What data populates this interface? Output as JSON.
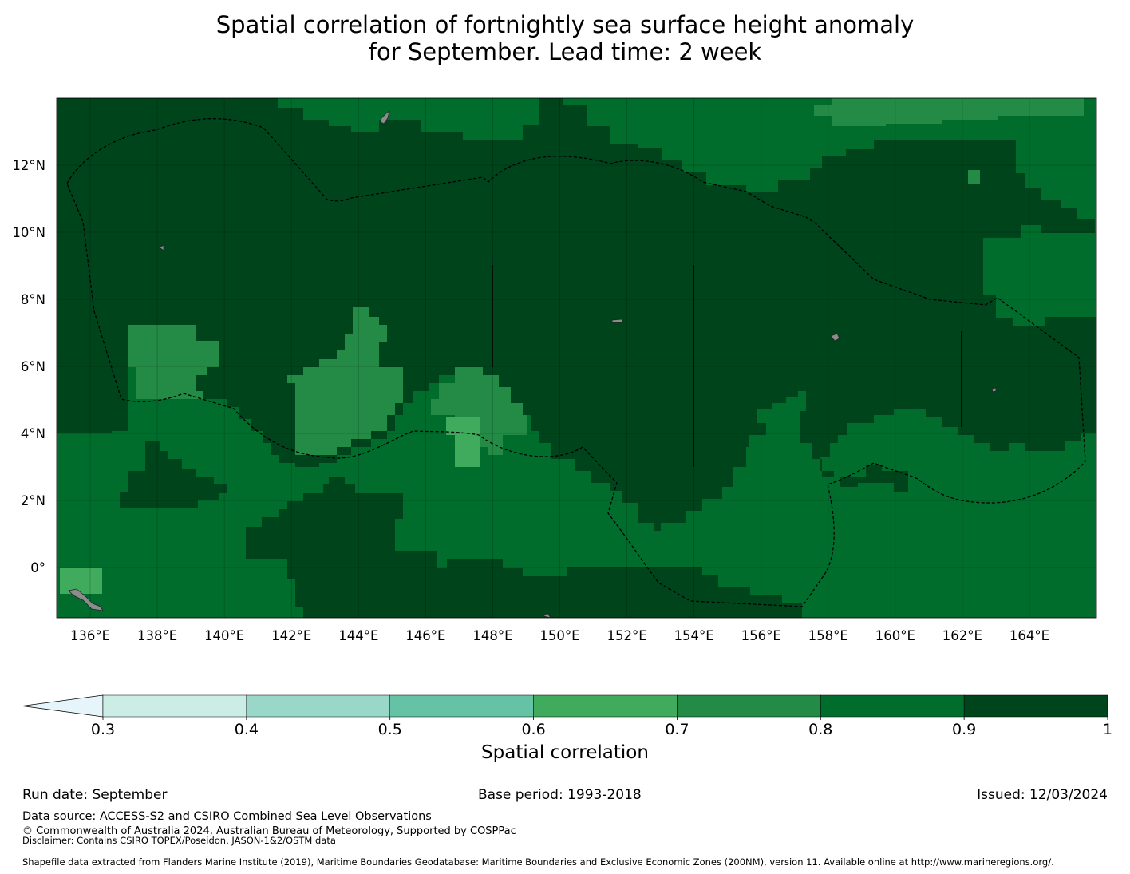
{
  "title": {
    "line1": "Spatial correlation of fortnightly sea surface height anomaly",
    "line2": "for September. Lead time: 2 week"
  },
  "map": {
    "lon_ticks": [
      "136°E",
      "138°E",
      "140°E",
      "142°E",
      "144°E",
      "146°E",
      "148°E",
      "150°E",
      "152°E",
      "154°E",
      "156°E",
      "158°E",
      "160°E",
      "162°E",
      "164°E"
    ],
    "lat_ticks": [
      "12°N",
      "10°N",
      "8°N",
      "6°N",
      "4°N",
      "2°N",
      "0°"
    ],
    "lon_range": [
      135.0,
      166.0
    ],
    "lat_range": [
      -1.5,
      14.0
    ],
    "colors": {
      "r09_10": "#00441b",
      "r08_09": "#006d2c",
      "r07_08": "#238b45",
      "r06_07": "#41ab5d",
      "land": "#8c8c8c"
    }
  },
  "colorbar": {
    "label": "Spatial correlation",
    "ticks": [
      "0.3",
      "0.4",
      "0.5",
      "0.6",
      "0.7",
      "0.8",
      "0.9",
      "1"
    ],
    "extend_color": "#e5f5f9",
    "colors": [
      "#ccece6",
      "#99d8c9",
      "#66c2a4",
      "#41ab5d",
      "#238b45",
      "#006d2c",
      "#00441b"
    ]
  },
  "footer": {
    "run_date": "Run date: September",
    "base_period": "Base period: 1993-2018",
    "issued": "Issued: 12/03/2024",
    "data_source": "Data source: ACCESS-S2 and CSIRO Combined Sea Level Observations",
    "copyright": "© Commonwealth of Australia 2024, Australian Bureau of Meteorology, Supported by COSPPac",
    "disclaimer": "Disclaimer: Contains CSIRO TOPEX/Poseidon, JASON-1&2/OSTM data",
    "shapefile": "Shapefile data extracted from Flanders Marine Institute (2019), Maritime Boundaries Geodatabase: Maritime Boundaries and Exclusive Economic Zones (200NM), version 11. Available online at http://www.marineregions.org/."
  }
}
